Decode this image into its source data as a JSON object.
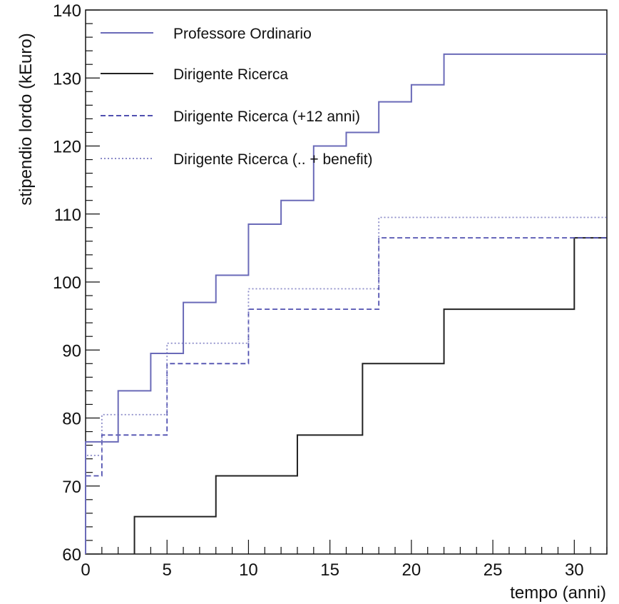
{
  "chart_data": {
    "type": "line",
    "step": true,
    "xlabel": "tempo (anni)",
    "ylabel": "stipendio lordo (kEuro)",
    "xlim": [
      0,
      32
    ],
    "ylim": [
      60,
      140
    ],
    "x_ticks": [
      0,
      5,
      10,
      15,
      20,
      25,
      30
    ],
    "y_ticks": [
      60,
      70,
      80,
      90,
      100,
      110,
      120,
      130,
      140
    ],
    "grid": false,
    "legend_position": "top-left",
    "series": [
      {
        "name": "Professore Ordinario",
        "color": "#6a6ab8",
        "style": "solid",
        "x": [
          0,
          2,
          4,
          6,
          8,
          10,
          12,
          14,
          16,
          18,
          20,
          22,
          32
        ],
        "y": [
          76.5,
          84,
          89.5,
          97,
          101,
          108.5,
          112,
          120,
          122,
          126.5,
          129,
          133.5,
          133.5
        ]
      },
      {
        "name": "Dirigente Ricerca",
        "color": "#222222",
        "style": "solid",
        "x": [
          3,
          8,
          13,
          17,
          22,
          30,
          32
        ],
        "y": [
          65.5,
          71.5,
          77.5,
          88,
          96,
          106.5,
          106.5
        ]
      },
      {
        "name": "Dirigente Ricerca (+12 anni)",
        "color": "#5050b0",
        "style": "dashed",
        "x": [
          0,
          1,
          5,
          10,
          18,
          32
        ],
        "y": [
          71.5,
          77.5,
          88,
          96,
          106.5,
          106.5
        ]
      },
      {
        "name": "Dirigente Ricerca (.. + benefit)",
        "color": "#8a8ac8",
        "style": "dotted",
        "x": [
          0,
          1,
          5,
          10,
          18,
          32
        ],
        "y": [
          74.5,
          80.5,
          91,
          99,
          109.5,
          109.5
        ]
      }
    ]
  }
}
